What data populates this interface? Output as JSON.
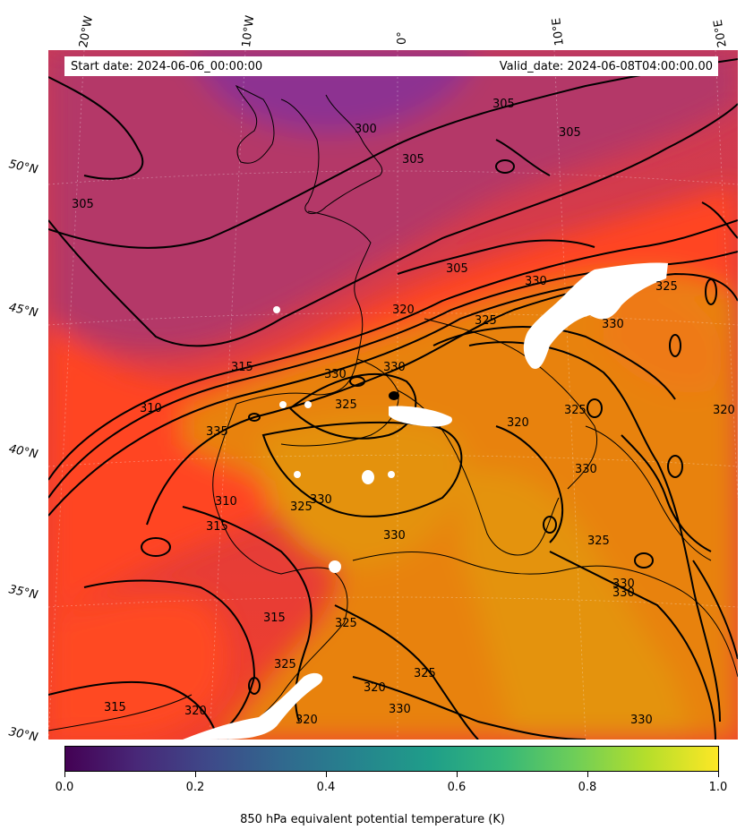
{
  "map": {
    "lon_labels": [
      "20°W",
      "10°W",
      "0°",
      "10°E",
      "20°E"
    ],
    "lat_labels": [
      "50°N",
      "45°N",
      "40°N",
      "35°N",
      "30°N"
    ],
    "start_date": "Start date: 2024-06-06_00:00:00",
    "valid_date": "Valid_date: 2024-06-08T04:00:00.00",
    "contour_labels": [
      "305",
      "300",
      "305",
      "305",
      "305",
      "305",
      "310",
      "315",
      "320",
      "325",
      "330",
      "330",
      "325",
      "330",
      "325",
      "330",
      "320",
      "325",
      "330",
      "320",
      "310",
      "315",
      "330",
      "325",
      "335",
      "330",
      "325",
      "330",
      "330",
      "325",
      "320",
      "315",
      "320",
      "320",
      "325",
      "330",
      "330",
      "315",
      "325"
    ],
    "colors": {
      "cold": "#8b3392",
      "mid": "#e0423a",
      "warm": "#ff4422",
      "hot": "#e8860e",
      "masked": "#ffffff",
      "contour": "#000000"
    }
  },
  "colorbar": {
    "ticks": [
      "0.0",
      "0.2",
      "0.4",
      "0.6",
      "0.8",
      "1.0"
    ],
    "title": "850 hPa equivalent potential temperature (K)"
  }
}
